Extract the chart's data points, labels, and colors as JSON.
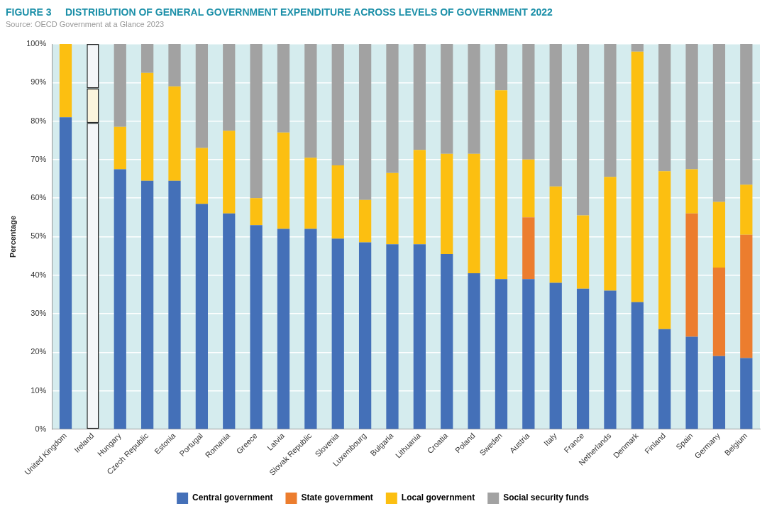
{
  "chart_data": {
    "type": "bar",
    "stacked": true,
    "title": "FIGURE 3     DISTRIBUTION OF GENERAL GOVERNMENT EXPENDITURE ACROSS LEVELS OF GOVERNMENT 2022",
    "subtitle": "Source: OECD Government at a Glance 2023",
    "ylabel": "Percentage",
    "categories": [
      "United Kingdom",
      "Ireland",
      "Hungary",
      "Czech Republic",
      "Estonia",
      "Portugal",
      "Romania",
      "Greece",
      "Latvia",
      "Slovak Republic",
      "Slovenia",
      "Luxembourg",
      "Bulgaria",
      "Lithuania",
      "Croatia",
      "Poland",
      "Sweden",
      "Austria",
      "Italy",
      "France",
      "Netherlands",
      "Denmark",
      "Finland",
      "Spain",
      "Germany",
      "Belgium"
    ],
    "series": [
      {
        "name": "Central government",
        "color": "#4470b8",
        "colors": [
          "#4470b8",
          "#f4f6f8",
          "#4470b8",
          "#4470b8",
          "#4470b8",
          "#4470b8",
          "#4470b8",
          "#4470b8",
          "#4470b8",
          "#4470b8",
          "#4470b8",
          "#4470b8",
          "#4470b8",
          "#4470b8",
          "#4470b8",
          "#4470b8",
          "#4470b8",
          "#4470b8",
          "#4470b8",
          "#4470b8",
          "#4470b8",
          "#4470b8",
          "#4470b8",
          "#4470b8",
          "#4470b8",
          "#4470b8"
        ],
        "values": [
          81,
          79.5,
          67.5,
          64.5,
          64.5,
          58.5,
          56,
          53,
          52,
          52,
          49.5,
          48.5,
          48,
          48,
          45.5,
          40.5,
          39,
          39,
          38,
          36.5,
          36,
          33,
          26,
          24,
          19,
          18.5
        ]
      },
      {
        "name": "State government",
        "color": "#ec7d2e",
        "values": [
          0,
          0,
          0,
          0,
          0,
          0,
          0,
          0,
          0,
          0,
          0,
          0,
          0,
          0,
          0,
          0,
          0,
          16,
          0,
          0,
          0,
          0,
          0,
          32,
          23,
          32
        ]
      },
      {
        "name": "Local government",
        "color": "#fcbf11",
        "colors": [
          "#fcbf11",
          "#fbf4dc",
          "#fcbf11",
          "#fcbf11",
          "#fcbf11",
          "#fcbf11",
          "#fcbf11",
          "#fcbf11",
          "#fcbf11",
          "#fcbf11",
          "#fcbf11",
          "#fcbf11",
          "#fcbf11",
          "#fcbf11",
          "#fcbf11",
          "#fcbf11",
          "#fcbf11",
          "#fcbf11",
          "#fcbf11",
          "#fcbf11",
          "#fcbf11",
          "#fcbf11",
          "#fcbf11",
          "#fcbf11",
          "#fcbf11",
          "#fcbf11"
        ],
        "values": [
          19,
          9,
          11,
          28,
          24.5,
          14.5,
          21.5,
          7,
          25,
          18.5,
          19,
          11,
          18.5,
          24.5,
          26,
          31,
          49,
          15,
          25,
          19,
          29.5,
          65,
          41,
          11.5,
          17,
          13
        ]
      },
      {
        "name": "Social security funds",
        "color": "#a2a2a2",
        "colors": [
          "#a2a2a2",
          "#f4f6f8",
          "#a2a2a2",
          "#a2a2a2",
          "#a2a2a2",
          "#a2a2a2",
          "#a2a2a2",
          "#a2a2a2",
          "#a2a2a2",
          "#a2a2a2",
          "#a2a2a2",
          "#a2a2a2",
          "#a2a2a2",
          "#a2a2a2",
          "#a2a2a2",
          "#a2a2a2",
          "#a2a2a2",
          "#a2a2a2",
          "#a2a2a2",
          "#a2a2a2",
          "#a2a2a2",
          "#a2a2a2",
          "#a2a2a2",
          "#a2a2a2",
          "#a2a2a2",
          "#a2a2a2"
        ],
        "values": [
          0,
          11.5,
          21.5,
          7.5,
          11,
          27,
          22.5,
          40,
          23,
          29.5,
          31.5,
          40.5,
          33.5,
          27.5,
          28.5,
          28.5,
          12,
          30,
          37,
          44.5,
          34.5,
          2,
          33,
          32.5,
          41,
          36.5
        ]
      }
    ],
    "ylim": [
      0,
      100
    ],
    "yticks": [
      {
        "value": 0,
        "label": "0%"
      },
      {
        "value": 10,
        "label": "10%"
      },
      {
        "value": 20,
        "label": "20%"
      },
      {
        "value": 30,
        "label": "30%"
      },
      {
        "value": 40,
        "label": "40%"
      },
      {
        "value": 50,
        "label": "50%"
      },
      {
        "value": 60,
        "label": "60%"
      },
      {
        "value": 70,
        "label": "70%"
      },
      {
        "value": 80,
        "label": "80%"
      },
      {
        "value": 90,
        "label": "90%"
      },
      {
        "value": 100,
        "label": "100%"
      }
    ],
    "grid": "y",
    "legend": "bottom"
  }
}
